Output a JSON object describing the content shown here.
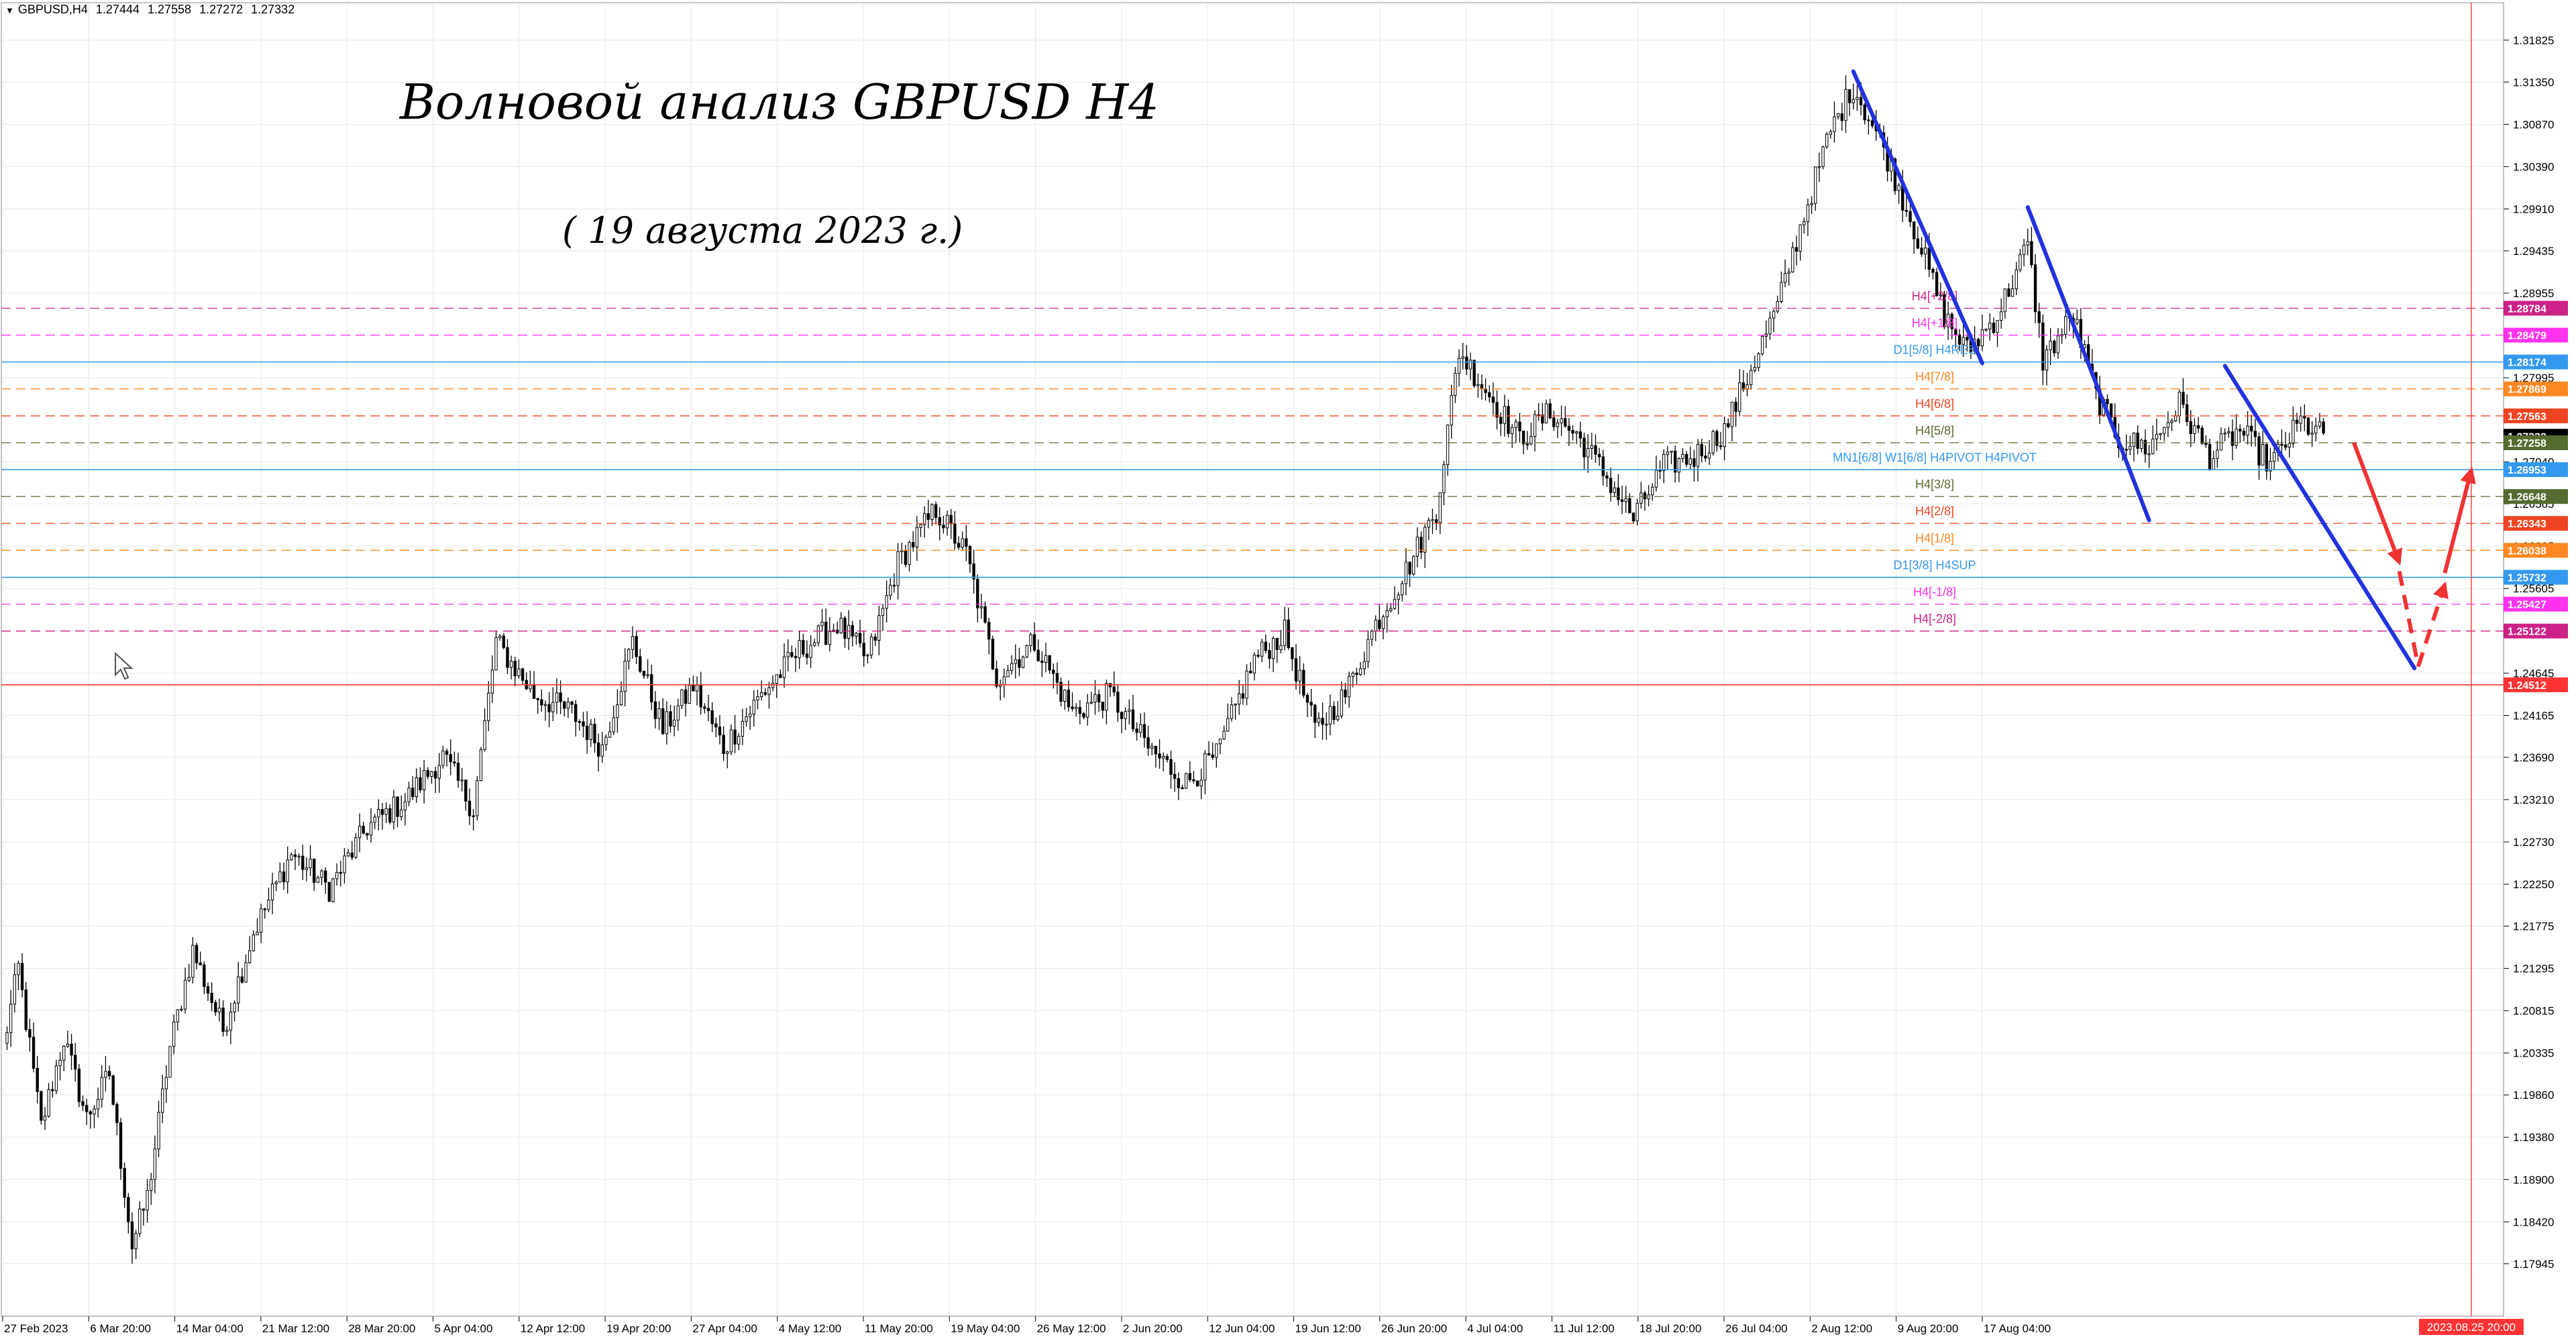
{
  "header": {
    "symbol": "GBPUSD,H4",
    "open": "1.27444",
    "high": "1.27558",
    "low": "1.27272",
    "close": "1.27332"
  },
  "annotations": {
    "title": "Волновой анализ GBPUSD H4",
    "date": "( 19 августа 2023 г.)"
  },
  "colors": {
    "candle": "#000000",
    "blue_wave": "#2233dd",
    "red_forecast": "#ee3333",
    "crosshair": "#ff3333",
    "grid": "#e8e8e8"
  },
  "chart_data": {
    "type": "candlestick",
    "ylim": [
      1.1735,
      1.3225
    ],
    "y_ticks": [
      "1.31825",
      "1.31350",
      "1.30870",
      "1.30390",
      "1.29910",
      "1.29435",
      "1.28955",
      "1.27995",
      "1.27040",
      "1.26565",
      "1.26085",
      "1.25605",
      "1.25125",
      "1.24645",
      "1.24165",
      "1.23690",
      "1.23210",
      "1.22730",
      "1.22250",
      "1.21775",
      "1.21295",
      "1.20815",
      "1.20335",
      "1.19860",
      "1.19380",
      "1.18900",
      "1.18420",
      "1.17945"
    ],
    "x_ticks": [
      "27 Feb 2023",
      "6 Mar 20:00",
      "14 Mar 04:00",
      "21 Mar 12:00",
      "28 Mar 20:00",
      "5 Apr 04:00",
      "12 Apr 12:00",
      "19 Apr 20:00",
      "27 Apr 04:00",
      "4 May 12:00",
      "11 May 20:00",
      "19 May 04:00",
      "26 May 12:00",
      "2 Jun 20:00",
      "12 Jun 04:00",
      "19 Jun 12:00",
      "26 Jun 20:00",
      "4 Jul 04:00",
      "11 Jul 12:00",
      "18 Jul 20:00",
      "26 Jul 04:00",
      "2 Aug 12:00",
      "9 Aug 20:00",
      "17 Aug 04:00"
    ],
    "x_marker_label": "2023.08.25 20:00",
    "current_price": "1.27332",
    "current_price_alt": "1.27258",
    "anchors": [
      {
        "i": 0,
        "p": 1.204
      },
      {
        "i": 4,
        "p": 1.213
      },
      {
        "i": 10,
        "p": 1.195
      },
      {
        "i": 16,
        "p": 1.205
      },
      {
        "i": 22,
        "p": 1.196
      },
      {
        "i": 28,
        "p": 1.201
      },
      {
        "i": 34,
        "p": 1.1815
      },
      {
        "i": 38,
        "p": 1.187
      },
      {
        "i": 44,
        "p": 1.204
      },
      {
        "i": 50,
        "p": 1.215
      },
      {
        "i": 58,
        "p": 1.206
      },
      {
        "i": 66,
        "p": 1.217
      },
      {
        "i": 76,
        "p": 1.226
      },
      {
        "i": 86,
        "p": 1.222
      },
      {
        "i": 96,
        "p": 1.229
      },
      {
        "i": 106,
        "p": 1.232
      },
      {
        "i": 116,
        "p": 1.237
      },
      {
        "i": 124,
        "p": 1.231
      },
      {
        "i": 130,
        "p": 1.25
      },
      {
        "i": 140,
        "p": 1.244
      },
      {
        "i": 150,
        "p": 1.242
      },
      {
        "i": 158,
        "p": 1.238
      },
      {
        "i": 166,
        "p": 1.25
      },
      {
        "i": 174,
        "p": 1.24
      },
      {
        "i": 182,
        "p": 1.245
      },
      {
        "i": 190,
        "p": 1.238
      },
      {
        "i": 200,
        "p": 1.244
      },
      {
        "i": 210,
        "p": 1.249
      },
      {
        "i": 220,
        "p": 1.252
      },
      {
        "i": 228,
        "p": 1.248
      },
      {
        "i": 236,
        "p": 1.259
      },
      {
        "i": 246,
        "p": 1.265
      },
      {
        "i": 254,
        "p": 1.26
      },
      {
        "i": 262,
        "p": 1.246
      },
      {
        "i": 272,
        "p": 1.25
      },
      {
        "i": 282,
        "p": 1.242
      },
      {
        "i": 292,
        "p": 1.244
      },
      {
        "i": 302,
        "p": 1.238
      },
      {
        "i": 312,
        "p": 1.234
      },
      {
        "i": 320,
        "p": 1.237
      },
      {
        "i": 330,
        "p": 1.248
      },
      {
        "i": 338,
        "p": 1.251
      },
      {
        "i": 346,
        "p": 1.24
      },
      {
        "i": 354,
        "p": 1.244
      },
      {
        "i": 362,
        "p": 1.252
      },
      {
        "i": 370,
        "p": 1.258
      },
      {
        "i": 378,
        "p": 1.265
      },
      {
        "i": 384,
        "p": 1.283
      },
      {
        "i": 392,
        "p": 1.278
      },
      {
        "i": 400,
        "p": 1.273
      },
      {
        "i": 408,
        "p": 1.276
      },
      {
        "i": 416,
        "p": 1.273
      },
      {
        "i": 424,
        "p": 1.268
      },
      {
        "i": 430,
        "p": 1.264
      },
      {
        "i": 438,
        "p": 1.27
      },
      {
        "i": 446,
        "p": 1.271
      },
      {
        "i": 454,
        "p": 1.274
      },
      {
        "i": 460,
        "p": 1.28
      },
      {
        "i": 468,
        "p": 1.288
      },
      {
        "i": 474,
        "p": 1.297
      },
      {
        "i": 482,
        "p": 1.308
      },
      {
        "i": 488,
        "p": 1.313
      },
      {
        "i": 496,
        "p": 1.306
      },
      {
        "i": 504,
        "p": 1.297
      },
      {
        "i": 512,
        "p": 1.287
      },
      {
        "i": 518,
        "p": 1.283
      },
      {
        "i": 526,
        "p": 1.287
      },
      {
        "i": 534,
        "p": 1.295
      },
      {
        "i": 538,
        "p": 1.282
      },
      {
        "i": 546,
        "p": 1.287
      },
      {
        "i": 552,
        "p": 1.278
      },
      {
        "i": 558,
        "p": 1.273
      },
      {
        "i": 566,
        "p": 1.272
      },
      {
        "i": 574,
        "p": 1.277
      },
      {
        "i": 582,
        "p": 1.271
      },
      {
        "i": 590,
        "p": 1.274
      },
      {
        "i": 598,
        "p": 1.27
      },
      {
        "i": 606,
        "p": 1.275
      },
      {
        "i": 612,
        "p": 1.2733
      }
    ],
    "levels": [
      {
        "label": "H4[+2/8]",
        "price": 1.28784,
        "color": "#cc2288",
        "style": "dash",
        "tag": "1.28784"
      },
      {
        "label": "H4[+1/8]",
        "price": 1.28479,
        "color": "#ff33ee",
        "style": "dash",
        "tag": "1.28479"
      },
      {
        "label": "D1[5/8] H4RES",
        "price": 1.28174,
        "color": "#3399ee",
        "style": "solid",
        "tag": "1.28174"
      },
      {
        "label": "H4[7/8]",
        "price": 1.27869,
        "color": "#ff8822",
        "style": "dash",
        "tag": "1.27869"
      },
      {
        "label": "H4[6/8]",
        "price": 1.27563,
        "color": "#ee4422",
        "style": "dash",
        "tag": "1.27563"
      },
      {
        "label": "H4[5/8]",
        "price": 1.27258,
        "color": "#556b2f",
        "style": "dash",
        "tag": "1.27258"
      },
      {
        "label": "MN1[6/8] W1[6/8] H4PIVOT H4PIVOT",
        "price": 1.26953,
        "color": "#3399ee",
        "style": "solid",
        "tag": "1.26953"
      },
      {
        "label": "H4[3/8]",
        "price": 1.26648,
        "color": "#556b2f",
        "style": "dash",
        "tag": "1.26648"
      },
      {
        "label": "H4[2/8]",
        "price": 1.26343,
        "color": "#ee4422",
        "style": "dash",
        "tag": "1.26343"
      },
      {
        "label": "H4[1/8]",
        "price": 1.26038,
        "color": "#ff8822",
        "style": "dash",
        "tag": "1.26038"
      },
      {
        "label": "D1[3/8] H4SUP",
        "price": 1.25732,
        "color": "#3399ee",
        "style": "solid",
        "tag": "1.25732"
      },
      {
        "label": "H4[-1/8]",
        "price": 1.25427,
        "color": "#ff33ee",
        "style": "dash",
        "tag": "1.25427"
      },
      {
        "label": "H4[-2/8]",
        "price": 1.25122,
        "color": "#cc2288",
        "style": "dash",
        "tag": "1.25122"
      },
      {
        "label": "",
        "price": 1.24512,
        "color": "#ff3333",
        "style": "solid",
        "tag": "1.24512"
      }
    ],
    "blue_waves": [
      [
        {
          "i": 488,
          "p": 1.3147
        },
        {
          "i": 522,
          "p": 1.2816
        }
      ],
      [
        {
          "i": 534,
          "p": 1.2993
        },
        {
          "i": 566,
          "p": 1.2638
        }
      ],
      [
        {
          "i": 586,
          "p": 1.2813
        },
        {
          "i": 636,
          "p": 1.247
        }
      ]
    ],
    "red_forecast": {
      "solid_down": [
        {
          "i": 620,
          "p": 1.2726
        },
        {
          "i": 632,
          "p": 1.259
        }
      ],
      "dash_down": [
        {
          "i": 632,
          "p": 1.258
        },
        {
          "i": 637,
          "p": 1.2472
        }
      ],
      "dash_up": [
        {
          "i": 637,
          "p": 1.2472
        },
        {
          "i": 644,
          "p": 1.2565
        }
      ],
      "solid_up": [
        {
          "i": 644,
          "p": 1.2578
        },
        {
          "i": 651,
          "p": 1.2695
        }
      ]
    }
  }
}
